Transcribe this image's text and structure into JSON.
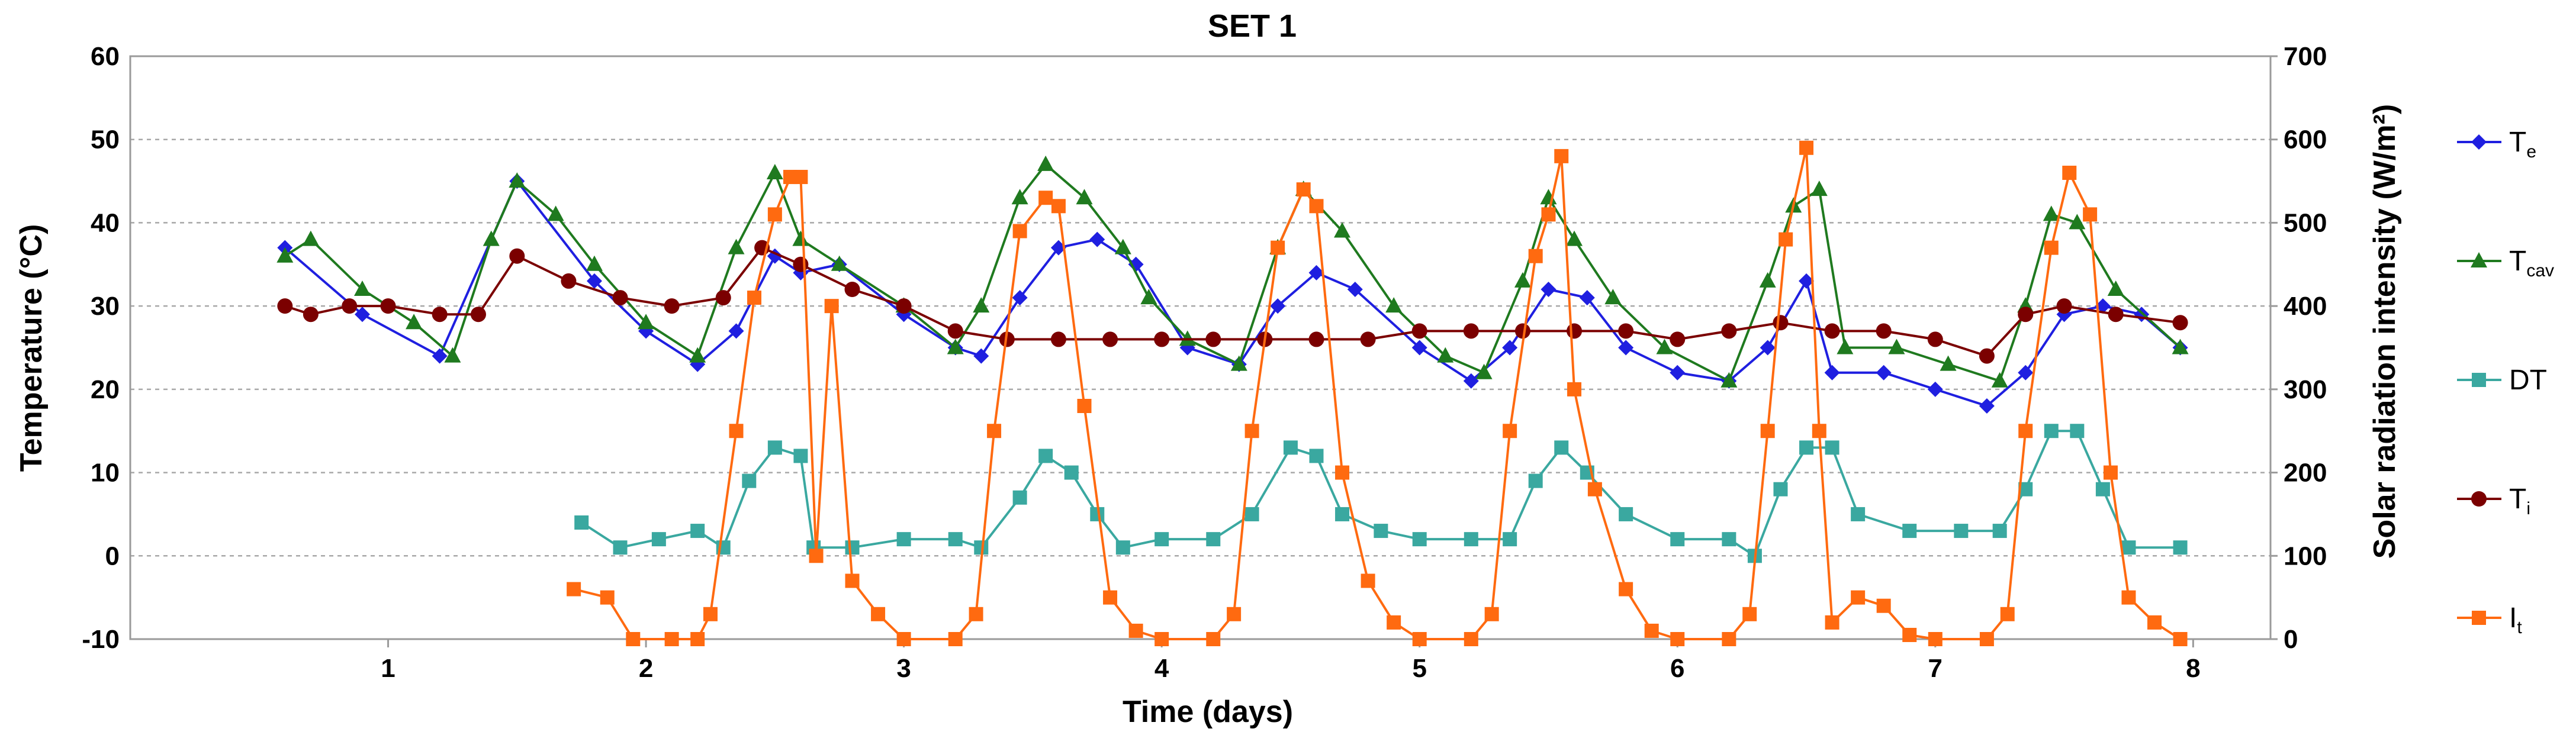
{
  "chart_data": {
    "type": "line",
    "title": "SET 1",
    "xlabel": "Time (days)",
    "ylabel": "Temperature (°C)",
    "y2label": "Solar radiation intensity (W/m²)",
    "xlim": [
      0,
      8.3
    ],
    "ylim": [
      -10,
      60
    ],
    "y2lim": [
      0,
      700
    ],
    "x_ticks": [
      1,
      2,
      3,
      4,
      5,
      6,
      7,
      8
    ],
    "x_tick_labels": [
      "1",
      "2",
      "3",
      "4",
      "5",
      "6",
      "7",
      "8"
    ],
    "y_ticks": [
      -10,
      0,
      10,
      20,
      30,
      40,
      50,
      60
    ],
    "y_tick_labels": [
      "-10",
      "0",
      "10",
      "20",
      "30",
      "40",
      "50",
      "60"
    ],
    "y2_ticks": [
      0,
      100,
      200,
      300,
      400,
      500,
      600,
      700
    ],
    "y2_tick_labels": [
      "0",
      "100",
      "200",
      "300",
      "400",
      "500",
      "600",
      "700"
    ],
    "grid": true,
    "legend_position": "right",
    "series": [
      {
        "name": "Te",
        "label_main": "T",
        "label_sub": "e",
        "color": "#1f1fe0",
        "marker": "diamond",
        "axis": "left",
        "x": [
          0.6,
          0.9,
          1.2,
          1.5,
          1.8,
          2.0,
          2.2,
          2.35,
          2.5,
          2.6,
          2.75,
          3.0,
          3.2,
          3.3,
          3.45,
          3.6,
          3.75,
          3.9,
          4.1,
          4.3,
          4.45,
          4.6,
          4.75,
          5.0,
          5.2,
          5.35,
          5.5,
          5.65,
          5.8,
          6.0,
          6.2,
          6.35,
          6.5,
          6.6,
          6.8,
          7.0,
          7.2,
          7.35,
          7.5,
          7.65,
          7.8,
          7.95
        ],
        "y": [
          37,
          29,
          24,
          45,
          33,
          27,
          23,
          27,
          36,
          34,
          35,
          29,
          25,
          24,
          31,
          37,
          38,
          35,
          25,
          23,
          30,
          34,
          32,
          25,
          21,
          25,
          32,
          31,
          25,
          22,
          21,
          25,
          33,
          22,
          22,
          20,
          18,
          22,
          29,
          30,
          29,
          25
        ]
      },
      {
        "name": "Tcav",
        "label_main": "T",
        "label_sub": "cav",
        "color": "#1f7a1f",
        "marker": "triangle",
        "axis": "left",
        "x": [
          0.6,
          0.7,
          0.9,
          1.1,
          1.25,
          1.4,
          1.5,
          1.65,
          1.8,
          2.0,
          2.2,
          2.35,
          2.5,
          2.6,
          2.75,
          3.0,
          3.2,
          3.3,
          3.45,
          3.55,
          3.7,
          3.85,
          3.95,
          4.1,
          4.3,
          4.45,
          4.55,
          4.7,
          4.9,
          5.1,
          5.25,
          5.4,
          5.5,
          5.6,
          5.75,
          5.95,
          6.2,
          6.35,
          6.45,
          6.55,
          6.65,
          6.85,
          7.05,
          7.25,
          7.35,
          7.45,
          7.55,
          7.7,
          7.95
        ],
        "y": [
          36,
          38,
          32,
          28,
          24,
          38,
          45,
          41,
          35,
          28,
          24,
          37,
          46,
          38,
          35,
          30,
          25,
          30,
          43,
          47,
          43,
          37,
          31,
          26,
          23,
          37,
          44,
          39,
          30,
          24,
          22,
          33,
          43,
          38,
          31,
          25,
          21,
          33,
          42,
          44,
          25,
          25,
          23,
          21,
          30,
          41,
          40,
          32,
          25
        ]
      },
      {
        "name": "DT",
        "label_main": "DT",
        "label_sub": "",
        "color": "#3aa8a0",
        "marker": "square",
        "axis": "left",
        "x": [
          1.75,
          1.9,
          2.05,
          2.2,
          2.3,
          2.4,
          2.5,
          2.6,
          2.65,
          2.8,
          3.0,
          3.2,
          3.3,
          3.45,
          3.55,
          3.65,
          3.75,
          3.85,
          4.0,
          4.2,
          4.35,
          4.5,
          4.6,
          4.7,
          4.85,
          5.0,
          5.2,
          5.35,
          5.45,
          5.55,
          5.65,
          5.8,
          6.0,
          6.2,
          6.3,
          6.4,
          6.5,
          6.6,
          6.7,
          6.9,
          7.1,
          7.25,
          7.35,
          7.45,
          7.55,
          7.65,
          7.75,
          7.95
        ],
        "y": [
          4,
          1,
          2,
          3,
          1,
          9,
          13,
          12,
          1,
          1,
          2,
          2,
          1,
          7,
          12,
          10,
          5,
          1,
          2,
          2,
          5,
          13,
          12,
          5,
          3,
          2,
          2,
          2,
          9,
          13,
          10,
          5,
          2,
          2,
          0,
          8,
          13,
          13,
          5,
          3,
          3,
          3,
          8,
          15,
          15,
          8,
          1,
          1
        ]
      },
      {
        "name": "Ti",
        "label_main": "T",
        "label_sub": "i",
        "color": "#7b0000",
        "marker": "circle",
        "axis": "left",
        "x": [
          0.6,
          0.7,
          0.85,
          1.0,
          1.2,
          1.35,
          1.5,
          1.7,
          1.9,
          2.1,
          2.3,
          2.45,
          2.6,
          2.8,
          3.0,
          3.2,
          3.4,
          3.6,
          3.8,
          4.0,
          4.2,
          4.4,
          4.6,
          4.8,
          5.0,
          5.2,
          5.4,
          5.6,
          5.8,
          6.0,
          6.2,
          6.4,
          6.6,
          6.8,
          7.0,
          7.2,
          7.35,
          7.5,
          7.7,
          7.95
        ],
        "y": [
          30,
          29,
          30,
          30,
          29,
          29,
          36,
          33,
          31,
          30,
          31,
          37,
          35,
          32,
          30,
          27,
          26,
          26,
          26,
          26,
          26,
          26,
          26,
          26,
          27,
          27,
          27,
          27,
          27,
          26,
          27,
          28,
          27,
          27,
          26,
          24,
          29,
          30,
          29,
          28
        ]
      },
      {
        "name": "It",
        "label_main": "I",
        "label_sub": "t",
        "color": "#ff6a10",
        "marker": "square",
        "axis": "right",
        "x": [
          1.72,
          1.85,
          1.95,
          2.1,
          2.2,
          2.25,
          2.35,
          2.42,
          2.5,
          2.56,
          2.6,
          2.66,
          2.72,
          2.8,
          2.9,
          3.0,
          3.2,
          3.28,
          3.35,
          3.45,
          3.55,
          3.6,
          3.7,
          3.8,
          3.9,
          4.0,
          4.2,
          4.28,
          4.35,
          4.45,
          4.55,
          4.6,
          4.7,
          4.8,
          4.9,
          5.0,
          5.2,
          5.28,
          5.35,
          5.45,
          5.5,
          5.55,
          5.6,
          5.68,
          5.8,
          5.9,
          6.0,
          6.2,
          6.28,
          6.35,
          6.42,
          6.5,
          6.55,
          6.6,
          6.7,
          6.8,
          6.9,
          7.0,
          7.2,
          7.28,
          7.35,
          7.45,
          7.52,
          7.6,
          7.68,
          7.75,
          7.85,
          7.95
        ],
        "y": [
          60,
          50,
          0,
          0,
          0,
          30,
          250,
          410,
          510,
          555,
          555,
          100,
          400,
          70,
          30,
          0,
          0,
          30,
          250,
          490,
          530,
          520,
          280,
          50,
          10,
          0,
          0,
          30,
          250,
          470,
          540,
          520,
          200,
          70,
          20,
          0,
          0,
          30,
          250,
          460,
          510,
          580,
          300,
          180,
          60,
          10,
          0,
          0,
          30,
          250,
          480,
          590,
          250,
          20,
          50,
          40,
          5,
          0,
          0,
          30,
          250,
          470,
          560,
          510,
          200,
          50,
          20,
          0
        ]
      }
    ]
  }
}
